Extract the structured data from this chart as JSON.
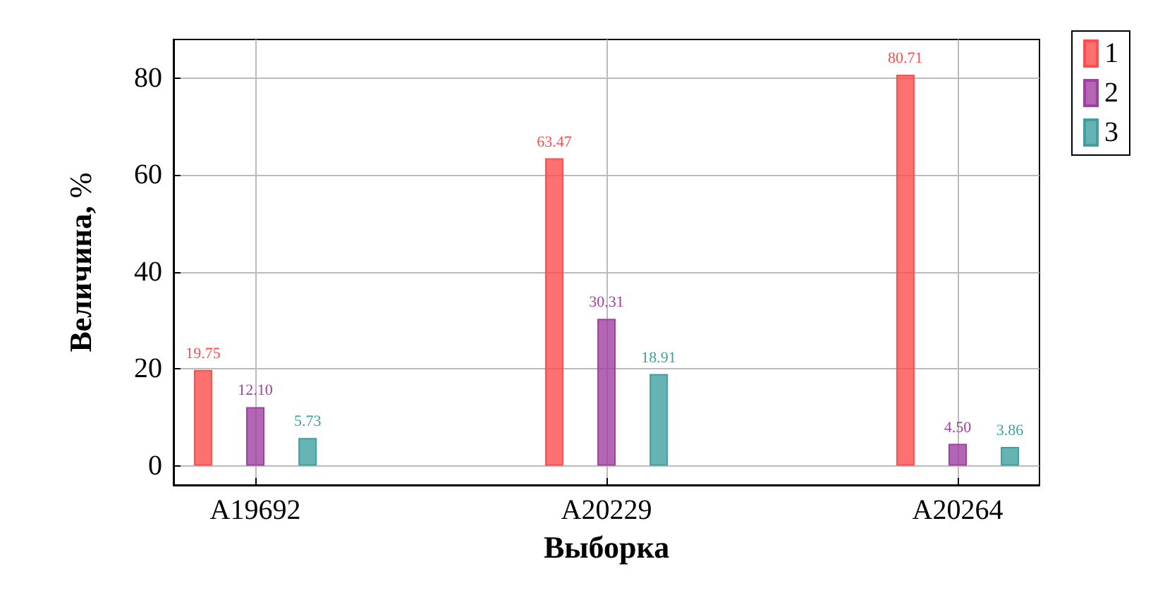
{
  "chart_data": {
    "type": "bar",
    "xlabel": "Выборка",
    "ylabel": "Величина, %",
    "categories": [
      "A19692",
      "A20229",
      "A20264"
    ],
    "series": [
      {
        "name": "1",
        "color": "#ff4d4d",
        "values": [
          19.75,
          63.47,
          80.71
        ],
        "value_labels": [
          "19.75",
          "63.47",
          "80.71"
        ]
      },
      {
        "name": "2",
        "color": "#a040a0",
        "values": [
          12.1,
          30.31,
          4.5
        ],
        "value_labels": [
          "12.10",
          "30.31",
          "4.50"
        ]
      },
      {
        "name": "3",
        "color": "#40a0a0",
        "values": [
          5.73,
          18.91,
          3.86
        ],
        "value_labels": [
          "5.73",
          "18.91",
          "3.86"
        ]
      }
    ],
    "ylim": [
      -4,
      88
    ],
    "yticks": [
      0,
      20,
      40,
      60,
      80
    ],
    "grid": true,
    "legend": "top right"
  }
}
